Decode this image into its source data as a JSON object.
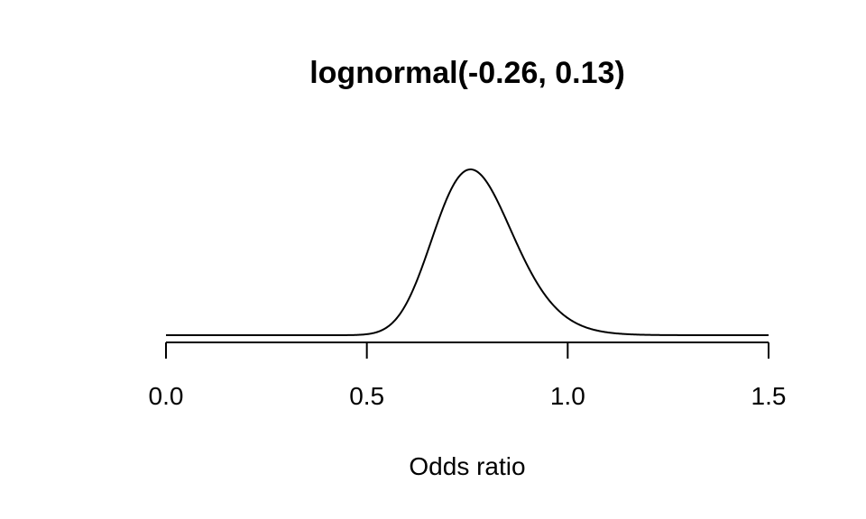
{
  "chart_data": {
    "type": "line",
    "title": "lognormal(-0.26, 0.13)",
    "xlabel": "Odds ratio",
    "ylabel": "",
    "xlim": [
      0,
      1.5
    ],
    "x_ticks": [
      0,
      0.5,
      1,
      1.5
    ],
    "x_tick_labels": [
      "0.0",
      "0.5",
      "1.0",
      "1.5"
    ],
    "distribution": {
      "family": "lognormal",
      "meanlog": -0.26,
      "sdlog": 0.13
    },
    "show_y_axis": false,
    "grid": false,
    "series": [
      {
        "color": "#000000",
        "x": [
          0.4,
          0.45,
          0.5,
          0.55,
          0.6,
          0.65,
          0.7,
          0.725,
          0.75,
          0.77,
          0.8,
          0.85,
          0.9,
          0.95,
          1.0,
          1.05,
          1.1,
          1.2
        ],
        "y": [
          0.0,
          0.01,
          0.09,
          0.47,
          1.36,
          2.39,
          3.01,
          3.09,
          3.06,
          2.98,
          2.7,
          1.98,
          1.25,
          0.69,
          0.34,
          0.16,
          0.07,
          0.01
        ]
      }
    ]
  }
}
